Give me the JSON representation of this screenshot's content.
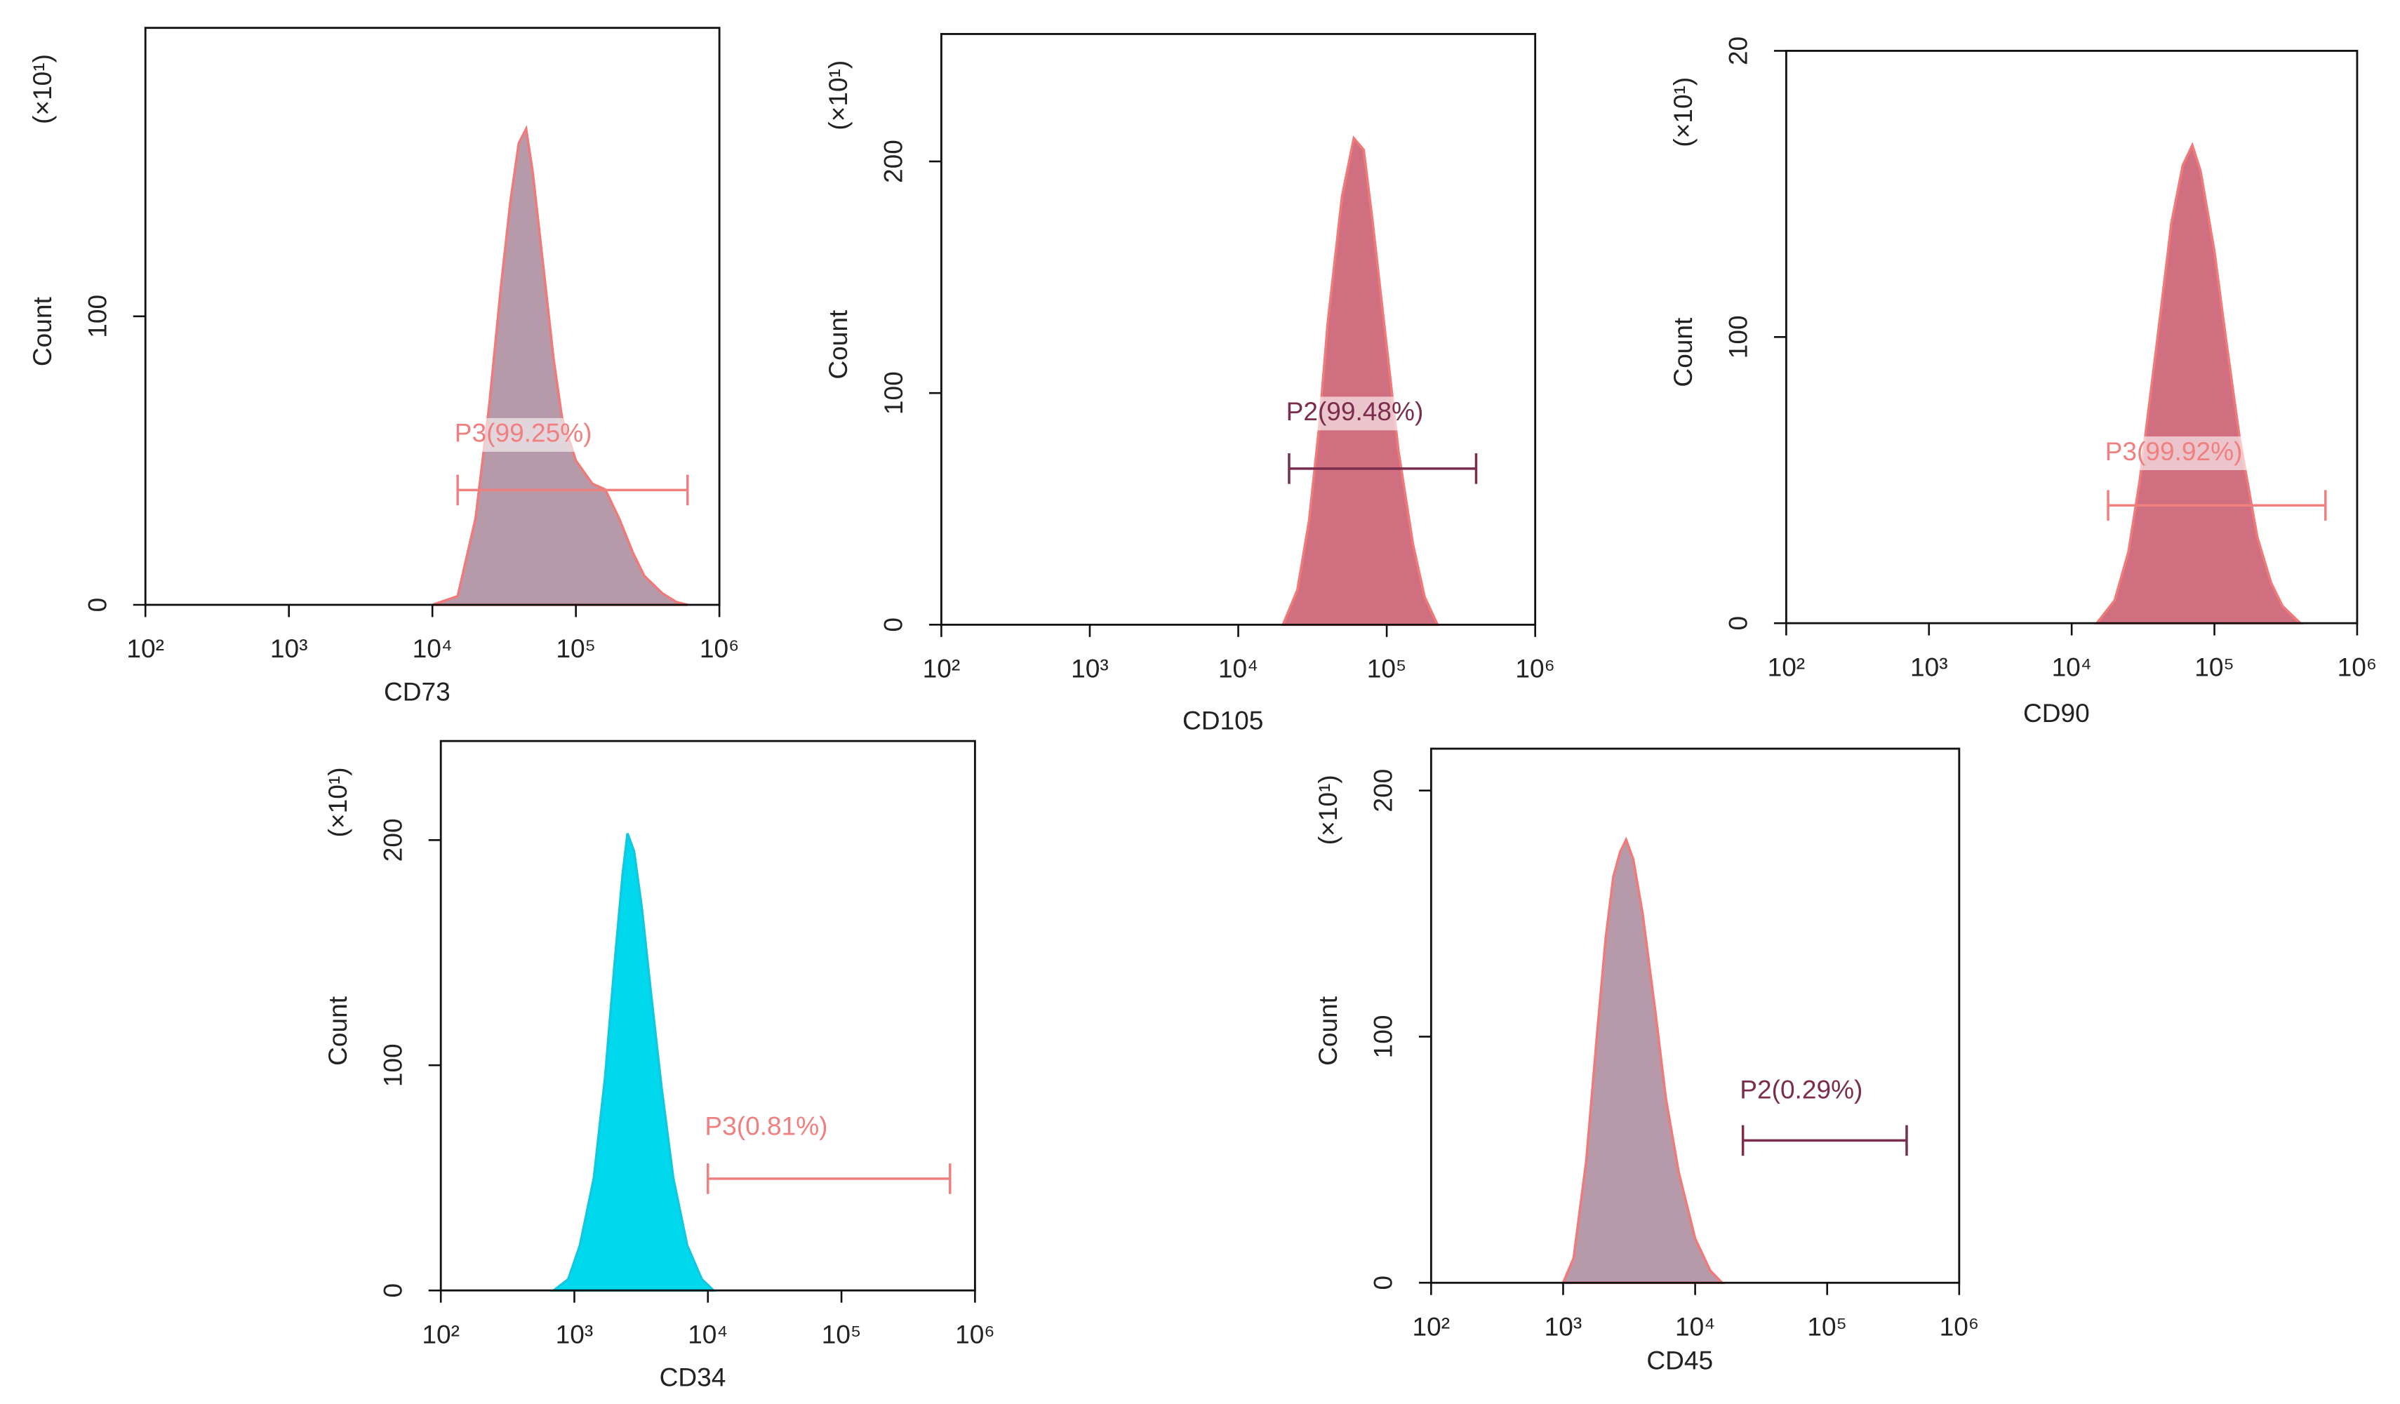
{
  "chart_data": [
    {
      "type": "area",
      "xscale": "log",
      "x_label": "CD73",
      "y_label": "Count",
      "y_multiplier": "(×10¹)",
      "fill": "#b79aa9",
      "color": "#f07a7a",
      "xlim": [
        100,
        1000000
      ],
      "ylim": [
        0,
        200
      ],
      "xticks": [
        {
          "value": 100,
          "label": "10²"
        },
        {
          "value": 1000,
          "label": "10³"
        },
        {
          "value": 10000,
          "label": "10⁴"
        },
        {
          "value": 100000,
          "label": "10⁵"
        },
        {
          "value": 1000000,
          "label": "10⁶"
        }
      ],
      "yticks": [
        0,
        100
      ],
      "x": [
        10000,
        15000,
        20000,
        25000,
        30000,
        35000,
        40000,
        45000,
        50000,
        60000,
        70000,
        80000,
        100000,
        130000,
        160000,
        200000,
        250000,
        300000,
        400000,
        500000,
        600000
      ],
      "values": [
        0,
        3,
        30,
        70,
        110,
        140,
        160,
        165,
        150,
        115,
        85,
        65,
        50,
        42,
        40,
        30,
        18,
        10,
        4,
        1,
        0
      ],
      "gate": {
        "label": "P3(99.25%)",
        "range": [
          15000,
          600000
        ],
        "color": "#f08080"
      }
    },
    {
      "type": "area",
      "xscale": "log",
      "x_label": "CD105",
      "y_label": "Count",
      "y_multiplier": "(×10¹)",
      "fill": "#cf6f80",
      "color": "#f07a7a",
      "xlim": [
        100,
        1000000
      ],
      "ylim": [
        0,
        255
      ],
      "xticks": [
        {
          "value": 100,
          "label": "10²"
        },
        {
          "value": 1000,
          "label": "10³"
        },
        {
          "value": 10000,
          "label": "10⁴"
        },
        {
          "value": 100000,
          "label": "10⁵"
        },
        {
          "value": 1000000,
          "label": "10⁶"
        }
      ],
      "yticks": [
        0,
        100,
        200
      ],
      "x": [
        20000,
        25000,
        30000,
        35000,
        40000,
        50000,
        60000,
        70000,
        80000,
        100000,
        120000,
        150000,
        180000,
        220000
      ],
      "values": [
        0,
        15,
        45,
        85,
        130,
        185,
        210,
        205,
        175,
        120,
        75,
        35,
        12,
        0
      ],
      "gate": {
        "label": "P2(99.48%)",
        "range": [
          22000,
          400000
        ],
        "color": "#7a2d4c"
      }
    },
    {
      "type": "area",
      "xscale": "log",
      "x_label": "CD90",
      "y_label": "Count",
      "y_multiplier": "(×10¹)",
      "fill": "#cf6f80",
      "color": "#f07a7a",
      "xlim": [
        100,
        1000000
      ],
      "ylim": [
        0,
        200
      ],
      "xticks": [
        {
          "value": 100,
          "label": "10²"
        },
        {
          "value": 1000,
          "label": "10³"
        },
        {
          "value": 10000,
          "label": "10⁴"
        },
        {
          "value": 100000,
          "label": "10⁵"
        },
        {
          "value": 1000000,
          "label": "10⁶"
        }
      ],
      "yticks": [
        0,
        100,
        {
          "value": 200,
          "label": "20"
        }
      ],
      "x": [
        15000,
        20000,
        25000,
        30000,
        40000,
        50000,
        60000,
        70000,
        80000,
        100000,
        120000,
        150000,
        200000,
        250000,
        300000,
        400000
      ],
      "values": [
        0,
        8,
        25,
        50,
        100,
        140,
        160,
        167,
        158,
        130,
        100,
        65,
        30,
        14,
        6,
        0
      ],
      "gate": {
        "label": "P3(99.92%)",
        "range": [
          18000,
          600000
        ],
        "color": "#f08080"
      }
    },
    {
      "type": "area",
      "xscale": "log",
      "x_label": "CD34",
      "y_label": "Count",
      "y_multiplier": "(×10¹)",
      "fill": "#00d8ee",
      "color": "#10c8e0",
      "xlim": [
        100,
        1000000
      ],
      "ylim": [
        0,
        244
      ],
      "xticks": [
        {
          "value": 100,
          "label": "10²"
        },
        {
          "value": 1000,
          "label": "10³"
        },
        {
          "value": 10000,
          "label": "10⁴"
        },
        {
          "value": 100000,
          "label": "10⁵"
        },
        {
          "value": 1000000,
          "label": "10⁶"
        }
      ],
      "yticks": [
        0,
        100,
        200
      ],
      "x": [
        700,
        900,
        1100,
        1400,
        1700,
        2000,
        2300,
        2500,
        2800,
        3200,
        3700,
        4500,
        5500,
        7000,
        9000,
        11000
      ],
      "values": [
        0,
        5,
        20,
        50,
        95,
        145,
        185,
        203,
        195,
        170,
        135,
        90,
        50,
        20,
        5,
        0
      ],
      "gate": {
        "label": "P3(0.81%)",
        "range": [
          10000,
          650000
        ],
        "color": "#f08080"
      }
    },
    {
      "type": "area",
      "xscale": "log",
      "x_label": "CD45",
      "y_label": "Count",
      "y_multiplier": "(×10¹)",
      "fill": "#b79aa9",
      "color": "#f07a7a",
      "xlim": [
        100,
        1000000
      ],
      "ylim": [
        0,
        217
      ],
      "xticks": [
        {
          "value": 100,
          "label": "10²"
        },
        {
          "value": 1000,
          "label": "10³"
        },
        {
          "value": 10000,
          "label": "10⁴"
        },
        {
          "value": 100000,
          "label": "10⁵"
        },
        {
          "value": 1000000,
          "label": "10⁶"
        }
      ],
      "yticks": [
        0,
        100,
        200
      ],
      "x": [
        1000,
        1200,
        1500,
        1800,
        2100,
        2400,
        2700,
        3000,
        3400,
        4000,
        5000,
        6000,
        7500,
        10000,
        13000,
        16000
      ],
      "values": [
        0,
        10,
        50,
        100,
        140,
        165,
        175,
        180,
        172,
        150,
        110,
        75,
        45,
        18,
        5,
        0
      ],
      "gate": {
        "label": "P2(0.29%)",
        "range": [
          23000,
          400000
        ],
        "color": "#7a2d4c"
      }
    }
  ]
}
